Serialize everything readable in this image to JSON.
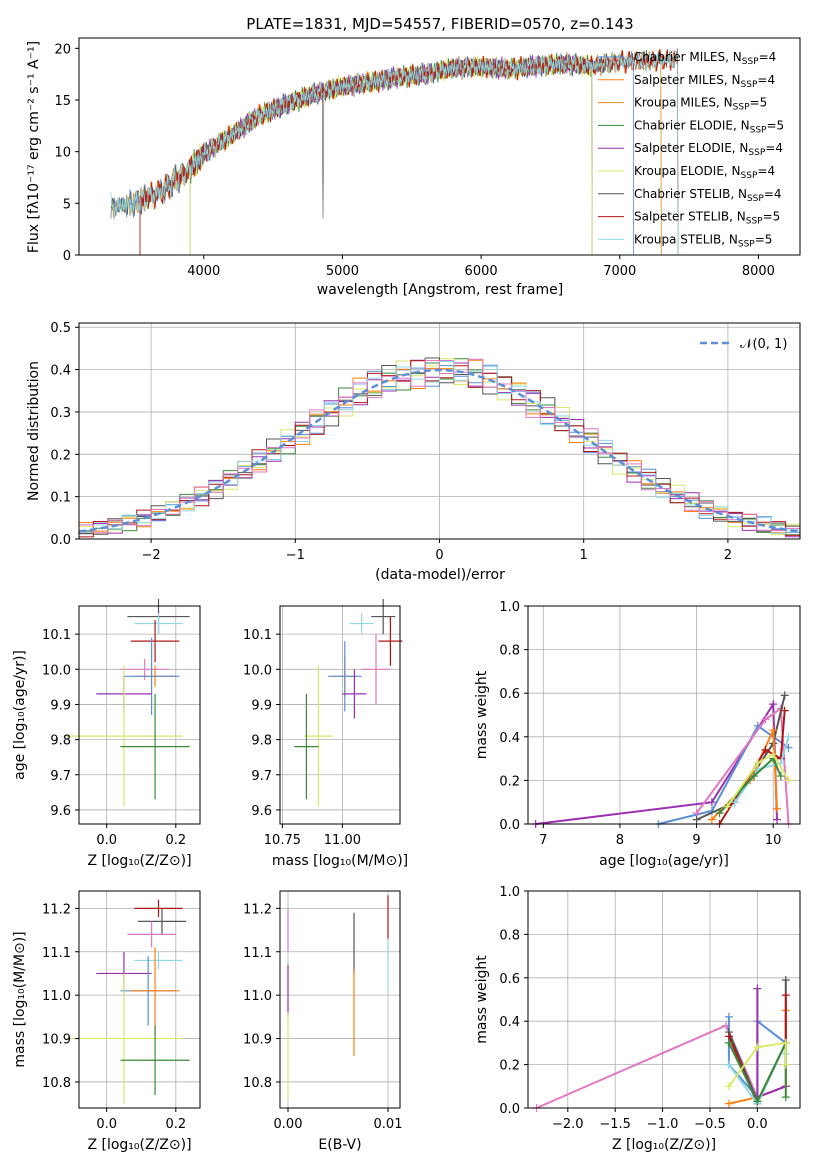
{
  "colors": {
    "Chabrier MILES": "#5b8fd6",
    "Salpeter MILES": "#ff7f0e",
    "Kroupa MILES": "#d98a1c",
    "Chabrier ELODIE": "#3a8a3a",
    "Salpeter ELODIE": "#9b30b0",
    "Kroupa ELODIE": "#d9e86a",
    "Chabrier STELIB": "#555555",
    "Salpeter STELIB": "#b01818",
    "Kroupa STELIB": "#8fd9e6",
    "pink": "#e377c2"
  },
  "chart_data": [
    {
      "id": "spectrum",
      "type": "line",
      "title": "PLATE=1831, MJD=54557, FIBERID=0570, z=0.143",
      "xlabel": "wavelength [Angstrom, rest frame]",
      "ylabel": "Flux [fλ10⁻¹⁷ erg cm⁻² s⁻¹ A⁻¹]",
      "xlim": [
        3100,
        8300
      ],
      "ylim": [
        0,
        21
      ],
      "xticks": [
        "4000",
        "5000",
        "6000",
        "7000",
        "8000"
      ],
      "yticks": [
        "0",
        "5",
        "10",
        "15",
        "20"
      ],
      "legend_position": "top-right",
      "continuum": {
        "x": [
          3330,
          3500,
          3700,
          3900,
          4000,
          4200,
          4400,
          4600,
          4800,
          5000,
          5200,
          5400,
          5600,
          5800,
          6000,
          6200,
          6400,
          6600,
          6800,
          7000,
          7200,
          7400
        ],
        "y": [
          4.6,
          5.0,
          6.2,
          8.3,
          9.8,
          11.6,
          13.5,
          14.6,
          15.6,
          16.3,
          16.7,
          17.2,
          17.5,
          18.1,
          18.2,
          18.0,
          18.3,
          18.5,
          18.3,
          18.7,
          18.8,
          18.9
        ]
      },
      "series": [
        {
          "name": "Chabrier MILES, N",
          "sub": "SSP",
          "suffix": "=4",
          "color_key": "Chabrier MILES",
          "range": [
            3330,
            7100
          ]
        },
        {
          "name": "Salpeter MILES, N",
          "sub": "SSP",
          "suffix": "=4",
          "color_key": "Salpeter MILES",
          "range": [
            3540,
            7420
          ]
        },
        {
          "name": "Kroupa MILES, N",
          "sub": "SSP",
          "suffix": "=5",
          "color_key": "Kroupa MILES",
          "range": [
            3330,
            7300
          ]
        },
        {
          "name": "Chabrier ELODIE, N",
          "sub": "SSP",
          "suffix": "=5",
          "color_key": "Chabrier ELODIE",
          "range": [
            3900,
            6800
          ]
        },
        {
          "name": "Salpeter ELODIE, N",
          "sub": "SSP",
          "suffix": "=4",
          "color_key": "Salpeter ELODIE",
          "range": [
            3900,
            6800
          ]
        },
        {
          "name": "Kroupa ELODIE, N",
          "sub": "SSP",
          "suffix": "=4",
          "color_key": "Kroupa ELODIE",
          "range": [
            3900,
            6800
          ]
        },
        {
          "name": "Chabrier STELIB, N",
          "sub": "SSP",
          "suffix": "=4",
          "color_key": "Chabrier STELIB",
          "range": [
            3330,
            7420
          ]
        },
        {
          "name": "Salpeter STELIB, N",
          "sub": "SSP",
          "suffix": "=5",
          "color_key": "Salpeter STELIB",
          "range": [
            3540,
            7420
          ]
        },
        {
          "name": "Kroupa STELIB, N",
          "sub": "SSP",
          "suffix": "=5",
          "color_key": "Kroupa STELIB",
          "range": [
            3330,
            7420
          ]
        }
      ]
    },
    {
      "id": "residuals",
      "type": "line",
      "xlabel": "(data-model)/error",
      "ylabel": "Normed distribution",
      "xlim": [
        -2.5,
        2.5
      ],
      "ylim": [
        0,
        0.51
      ],
      "xticks": [
        "−2",
        "−1",
        "0",
        "1",
        "2"
      ],
      "yticks": [
        "0.0",
        "0.1",
        "0.2",
        "0.3",
        "0.4",
        "0.5"
      ],
      "grid": true,
      "legend_position": "top-right",
      "legend": "𝒩(0, 1)",
      "gauss_color": "#5b8fd6",
      "hist_colors": [
        "#5b8fd6",
        "#ff7f0e",
        "#3a8a3a",
        "#9b30b0",
        "#d9e86a",
        "#555555",
        "#b01818",
        "#8fd9e6",
        "#e377c2"
      ]
    },
    {
      "id": "age_vs_Z",
      "type": "scatter",
      "xlabel": "Z [log₁₀(Z/Z⊙)]",
      "ylabel": "age  [log₁₀(age/yr)]",
      "xlim": [
        -0.08,
        0.27
      ],
      "ylim": [
        9.56,
        10.18
      ],
      "xticks": [
        "0.0",
        "0.2"
      ],
      "yticks": [
        "9.6",
        "9.7",
        "9.8",
        "9.9",
        "10.0",
        "10.1"
      ],
      "grid": true,
      "points": [
        {
          "x": 0.15,
          "y": 10.15,
          "xe": 0.09,
          "ye": 0.05,
          "c": "#555555"
        },
        {
          "x": 0.15,
          "y": 10.13,
          "xe": 0.07,
          "ye": 0.03,
          "c": "#8fd9e6"
        },
        {
          "x": 0.14,
          "y": 10.08,
          "xe": 0.07,
          "ye": 0.06,
          "c": "#b01818"
        },
        {
          "x": 0.11,
          "y": 10.0,
          "xe": 0.07,
          "ye": 0.03,
          "c": "#e377c2"
        },
        {
          "x": 0.14,
          "y": 9.98,
          "xe": 0.06,
          "ye": 0.03,
          "c": "#ff7f0e"
        },
        {
          "x": 0.13,
          "y": 9.98,
          "xe": 0.08,
          "ye": 0.11,
          "c": "#5b8fd6"
        },
        {
          "x": 0.05,
          "y": 9.93,
          "xe": 0.08,
          "ye": 0.05,
          "c": "#9b30b0"
        },
        {
          "x": 0.05,
          "y": 9.81,
          "xe": 0.17,
          "ye": 0.2,
          "c": "#d9e86a"
        },
        {
          "x": 0.14,
          "y": 9.78,
          "xe": 0.1,
          "ye": 0.15,
          "c": "#3a8a3a"
        }
      ]
    },
    {
      "id": "age_vs_mass",
      "type": "scatter",
      "xlabel": "mass [log₁₀(M/M⊙)]",
      "ylabel": "",
      "xlim": [
        10.74,
        11.24
      ],
      "ylim": [
        9.56,
        10.18
      ],
      "xticks": [
        "10.75",
        "11.00"
      ],
      "yticks": [
        "9.6",
        "9.7",
        "9.8",
        "9.9",
        "10.0",
        "10.1"
      ],
      "grid": true,
      "points": [
        {
          "x": 11.17,
          "y": 10.15,
          "xe": 0.05,
          "ye": 0.05,
          "c": "#555555"
        },
        {
          "x": 11.08,
          "y": 10.13,
          "xe": 0.05,
          "ye": 0.03,
          "c": "#8fd9e6"
        },
        {
          "x": 11.2,
          "y": 10.08,
          "xe": 0.05,
          "ye": 0.07,
          "c": "#b01818"
        },
        {
          "x": 11.14,
          "y": 10.0,
          "xe": 0.06,
          "ye": 0.1,
          "c": "#e377c2"
        },
        {
          "x": 11.01,
          "y": 9.98,
          "xe": 0.05,
          "ye": 0.06,
          "c": "#ff7f0e"
        },
        {
          "x": 11.01,
          "y": 9.98,
          "xe": 0.07,
          "ye": 0.1,
          "c": "#5b8fd6"
        },
        {
          "x": 11.05,
          "y": 9.93,
          "xe": 0.05,
          "ye": 0.07,
          "c": "#9b30b0"
        },
        {
          "x": 10.9,
          "y": 9.81,
          "xe": 0.06,
          "ye": 0.2,
          "c": "#d9e86a"
        },
        {
          "x": 10.85,
          "y": 9.78,
          "xe": 0.05,
          "ye": 0.15,
          "c": "#3a8a3a"
        }
      ]
    },
    {
      "id": "mass_weight_vs_age",
      "type": "line",
      "xlabel": "age  [log₁₀(age/yr)]",
      "ylabel": "mass weight",
      "xlim": [
        6.8,
        10.35
      ],
      "ylim": [
        0,
        1.0
      ],
      "xticks": [
        "7",
        "8",
        "9",
        "10"
      ],
      "yticks": [
        "0.0",
        "0.2",
        "0.4",
        "0.6",
        "0.8",
        "1.0"
      ],
      "grid": true,
      "series": [
        {
          "c": "#9b30b0",
          "x": [
            6.9,
            9.2,
            10.0,
            10.05
          ],
          "y": [
            0.0,
            0.1,
            0.55,
            0.02
          ]
        },
        {
          "c": "#5b8fd6",
          "x": [
            8.5,
            9.2,
            9.8,
            10.2
          ],
          "y": [
            0.0,
            0.06,
            0.45,
            0.35
          ]
        },
        {
          "c": "#e377c2",
          "x": [
            9.0,
            9.9,
            10.1,
            10.2
          ],
          "y": [
            0.05,
            0.48,
            0.53,
            0.0
          ]
        },
        {
          "c": "#555555",
          "x": [
            9.0,
            9.5,
            10.0,
            10.15
          ],
          "y": [
            0.02,
            0.1,
            0.37,
            0.59
          ]
        },
        {
          "c": "#ff7f0e",
          "x": [
            9.2,
            9.7,
            10.0,
            10.05
          ],
          "y": [
            0.02,
            0.2,
            0.43,
            0.07
          ]
        },
        {
          "c": "#b01818",
          "x": [
            9.3,
            9.9,
            10.1,
            10.15
          ],
          "y": [
            0.0,
            0.34,
            0.3,
            0.52
          ]
        },
        {
          "c": "#8fd9e6",
          "x": [
            9.5,
            9.8,
            10.1,
            10.2
          ],
          "y": [
            0.1,
            0.25,
            0.28,
            0.4
          ]
        },
        {
          "c": "#3a8a3a",
          "x": [
            9.3,
            9.75,
            10.0,
            10.1
          ],
          "y": [
            0.05,
            0.22,
            0.3,
            0.22
          ]
        },
        {
          "c": "#d9e86a",
          "x": [
            9.4,
            9.8,
            10.0,
            10.2
          ],
          "y": [
            0.08,
            0.28,
            0.32,
            0.2
          ]
        }
      ]
    },
    {
      "id": "mass_vs_Z",
      "type": "scatter",
      "xlabel": "Z [log₁₀(Z/Z⊙)]",
      "ylabel": "mass [log₁₀(M/M⊙)]",
      "xlim": [
        -0.08,
        0.27
      ],
      "ylim": [
        10.74,
        11.24
      ],
      "xticks": [
        "0.0",
        "0.2"
      ],
      "yticks": [
        "10.8",
        "10.9",
        "11.0",
        "11.1",
        "11.2"
      ],
      "grid": true,
      "points": [
        {
          "x": 0.15,
          "y": 11.2,
          "xe": 0.07,
          "ye": 0.02,
          "c": "#b01818"
        },
        {
          "x": 0.16,
          "y": 11.17,
          "xe": 0.07,
          "ye": 0.03,
          "c": "#555555"
        },
        {
          "x": 0.13,
          "y": 11.14,
          "xe": 0.07,
          "ye": 0.03,
          "c": "#e377c2"
        },
        {
          "x": 0.15,
          "y": 11.08,
          "xe": 0.07,
          "ye": 0.02,
          "c": "#8fd9e6"
        },
        {
          "x": 0.05,
          "y": 11.05,
          "xe": 0.08,
          "ye": 0.05,
          "c": "#9b30b0"
        },
        {
          "x": 0.12,
          "y": 11.01,
          "xe": 0.08,
          "ye": 0.08,
          "c": "#5b8fd6"
        },
        {
          "x": 0.14,
          "y": 11.01,
          "xe": 0.07,
          "ye": 0.1,
          "c": "#ff7f0e"
        },
        {
          "x": 0.05,
          "y": 10.9,
          "xe": 0.17,
          "ye": 0.15,
          "c": "#d9e86a"
        },
        {
          "x": 0.14,
          "y": 10.85,
          "xe": 0.1,
          "ye": 0.08,
          "c": "#3a8a3a"
        }
      ]
    },
    {
      "id": "mass_vs_EBV",
      "type": "scatter",
      "xlabel": "E(B-V)",
      "ylabel": "",
      "xlim": [
        -0.0008,
        0.0112
      ],
      "ylim": [
        10.74,
        11.24
      ],
      "xticks": [
        "0.00",
        "0.01"
      ],
      "yticks": [
        "10.8",
        "10.9",
        "11.0",
        "11.1",
        "11.2"
      ],
      "grid": true,
      "points": [
        {
          "x": 0.0,
          "y": 11.15,
          "xe": 0,
          "ye": 0.05,
          "c": "#e377c2"
        },
        {
          "x": 0.0,
          "y": 11.01,
          "xe": 0,
          "ye": 0.06,
          "c": "#9b30b0"
        },
        {
          "x": 0.0,
          "y": 10.86,
          "xe": 0,
          "ye": 0.1,
          "c": "#d9e86a"
        },
        {
          "x": 0.0066,
          "y": 11.12,
          "xe": 0,
          "ye": 0.07,
          "c": "#555555"
        },
        {
          "x": 0.0066,
          "y": 10.96,
          "xe": 0,
          "ye": 0.1,
          "c": "#ff7f0e"
        },
        {
          "x": 0.01,
          "y": 11.18,
          "xe": 0,
          "ye": 0.05,
          "c": "#b01818"
        },
        {
          "x": 0.01,
          "y": 11.07,
          "xe": 0,
          "ye": 0.06,
          "c": "#8fd9e6"
        }
      ]
    },
    {
      "id": "mass_weight_vs_Z",
      "type": "line",
      "xlabel": "Z [log₁₀(Z/Z⊙)]",
      "ylabel": "mass weight",
      "xlim": [
        -2.42,
        0.45
      ],
      "ylim": [
        0,
        1.0
      ],
      "xticks": [
        "−2.0",
        "−1.5",
        "−1.0",
        "−0.5",
        "0.0"
      ],
      "yticks": [
        "0.0",
        "0.2",
        "0.4",
        "0.6",
        "0.8",
        "1.0"
      ],
      "grid": true,
      "series": [
        {
          "c": "#e377c2",
          "x": [
            -2.33,
            -0.33,
            0.0,
            0.3
          ],
          "y": [
            0.0,
            0.38,
            0.05,
            0.1
          ]
        },
        {
          "c": "#5b8fd6",
          "x": [
            -0.3,
            -0.3,
            0.0,
            0.0,
            0.3,
            0.3
          ],
          "y": [
            0.42,
            0.2,
            0.05,
            0.4,
            0.3,
            0.1
          ]
        },
        {
          "c": "#555555",
          "x": [
            -0.3,
            0.0,
            0.3,
            0.3
          ],
          "y": [
            0.35,
            0.03,
            0.3,
            0.59
          ]
        },
        {
          "c": "#ff7f0e",
          "x": [
            -0.3,
            0.0,
            0.3,
            0.3
          ],
          "y": [
            0.02,
            0.05,
            0.1,
            0.45
          ]
        },
        {
          "c": "#b01818",
          "x": [
            -0.3,
            0.0,
            0.3,
            0.3
          ],
          "y": [
            0.33,
            0.02,
            0.3,
            0.52
          ]
        },
        {
          "c": "#9b30b0",
          "x": [
            0.0,
            0.0,
            0.3
          ],
          "y": [
            0.55,
            0.05,
            0.1
          ]
        },
        {
          "c": "#8fd9e6",
          "x": [
            -0.3,
            0.0,
            0.3,
            0.3
          ],
          "y": [
            0.2,
            0.02,
            0.3,
            0.25
          ]
        },
        {
          "c": "#3a8a3a",
          "x": [
            -0.3,
            0.0,
            0.3,
            0.3
          ],
          "y": [
            0.3,
            0.03,
            0.3,
            0.05
          ]
        },
        {
          "c": "#d9e86a",
          "x": [
            -0.3,
            0.0,
            0.3,
            0.3
          ],
          "y": [
            0.1,
            0.28,
            0.3,
            0.2
          ]
        }
      ]
    }
  ]
}
